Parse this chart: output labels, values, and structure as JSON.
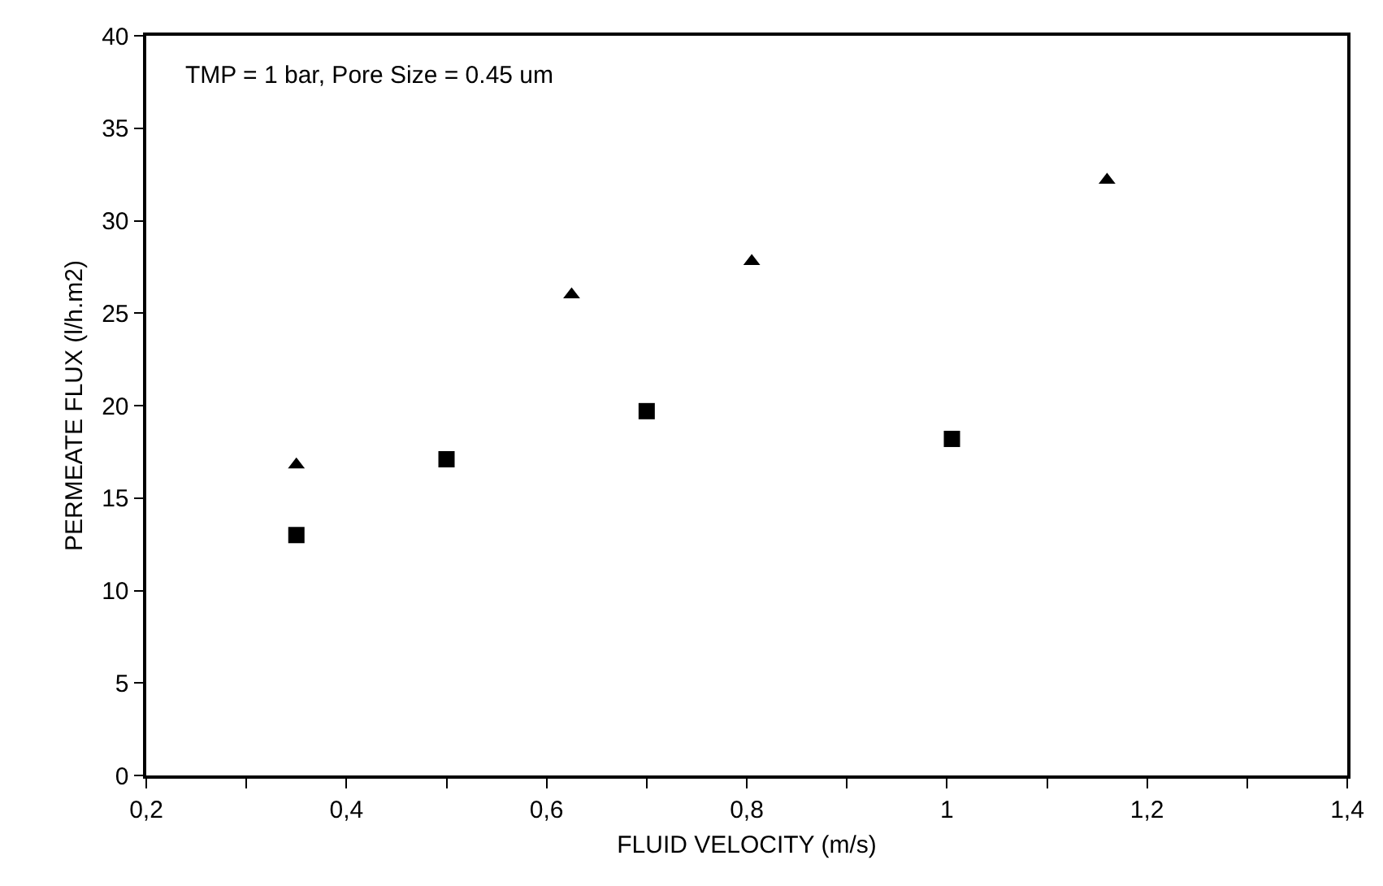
{
  "chart_data": {
    "type": "scatter",
    "xlabel": "FLUID VELOCITY (m/s)",
    "ylabel": "PERMEATE FLUX (l/h.m2)",
    "annotations": [
      "TMP = 1 bar, Pore Size = 0.45 um"
    ],
    "series": [
      {
        "color": "#000000",
        "marker": "triangle",
        "x": [
          0.35,
          0.625,
          0.805,
          1.16
        ],
        "values": [
          16.8,
          26,
          27.8,
          32.2
        ]
      },
      {
        "color": "#000000",
        "marker": "square",
        "x": [
          0.35,
          0.5,
          0.7,
          1.005
        ],
        "values": [
          13,
          17.1,
          19.7,
          18.2
        ]
      }
    ],
    "xlim": [
      0.2,
      1.4
    ],
    "xticks": [
      {
        "value": 0.2,
        "label": "0,2"
      },
      {
        "value": 0.3,
        "label": null
      },
      {
        "value": 0.4,
        "label": "0,4"
      },
      {
        "value": 0.5,
        "label": null
      },
      {
        "value": 0.6,
        "label": "0,6"
      },
      {
        "value": 0.7,
        "label": null
      },
      {
        "value": 0.8,
        "label": "0,8"
      },
      {
        "value": 0.9,
        "label": null
      },
      {
        "value": 1,
        "label": "1"
      },
      {
        "value": 1.1,
        "label": null
      },
      {
        "value": 1.2,
        "label": "1,2"
      },
      {
        "value": 1.3,
        "label": null
      },
      {
        "value": 1.4,
        "label": "1,4"
      }
    ],
    "ylim": [
      0,
      40
    ],
    "yticks": [
      0,
      5,
      10,
      15,
      20,
      25,
      30,
      35,
      40
    ],
    "grid": false
  }
}
